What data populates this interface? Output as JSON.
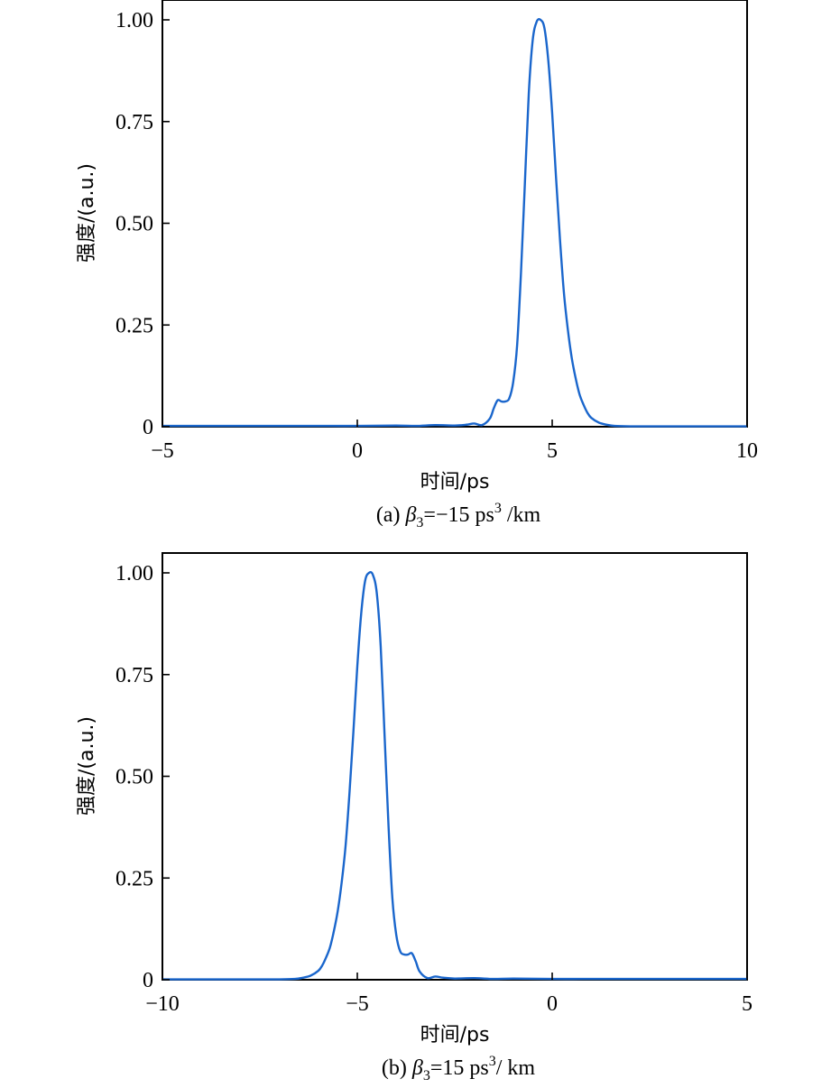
{
  "chart_data": [
    {
      "type": "line",
      "panel": "a",
      "xlabel": "时间/ps",
      "ylabel": "强度/(a.u.)",
      "xlim": [
        -5,
        10
      ],
      "ylim": [
        0,
        1.05
      ],
      "xticks": [
        -5,
        0,
        5,
        10
      ],
      "xtick_labels": [
        "−5",
        "0",
        "5",
        "10"
      ],
      "yticks": [
        0,
        0.25,
        0.5,
        0.75,
        1.0
      ],
      "ytick_labels": [
        "0",
        "0.25",
        "0.50",
        "0.75",
        "1.00"
      ],
      "caption": {
        "prefix": "(a) ",
        "symbol": "β",
        "subscript": "3",
        "value": "=−15 ps",
        "superscript": "3",
        "suffix": " /km"
      },
      "grid": false,
      "series": [
        {
          "color": "#1a66cc",
          "x": [
            -5,
            -4,
            -3,
            -2,
            -1,
            0,
            1,
            1.5,
            2,
            2.5,
            2.8,
            3.0,
            3.2,
            3.4,
            3.5,
            3.6,
            3.7,
            3.8,
            3.9,
            4.0,
            4.1,
            4.2,
            4.3,
            4.4,
            4.5,
            4.6,
            4.7,
            4.8,
            4.9,
            5.0,
            5.1,
            5.2,
            5.3,
            5.4,
            5.5,
            5.6,
            5.7,
            5.8,
            5.9,
            6.0,
            6.2,
            6.4,
            6.6,
            7.0,
            8,
            9,
            10
          ],
          "y": [
            0.002,
            0.002,
            0.002,
            0.002,
            0.002,
            0.002,
            0.003,
            0.002,
            0.004,
            0.003,
            0.005,
            0.008,
            0.004,
            0.02,
            0.045,
            0.065,
            0.062,
            0.062,
            0.07,
            0.11,
            0.2,
            0.38,
            0.6,
            0.82,
            0.95,
            0.995,
            1.0,
            0.98,
            0.9,
            0.77,
            0.61,
            0.46,
            0.33,
            0.24,
            0.17,
            0.12,
            0.08,
            0.055,
            0.035,
            0.022,
            0.01,
            0.005,
            0.002,
            0.001,
            0.001,
            0.001,
            0.001
          ]
        }
      ]
    },
    {
      "type": "line",
      "panel": "b",
      "xlabel": "时间/ps",
      "ylabel": "强度/(a.u.)",
      "xlim": [
        -10,
        5
      ],
      "ylim": [
        0,
        1.05
      ],
      "xticks": [
        -10,
        -5,
        0,
        5
      ],
      "xtick_labels": [
        "−10",
        "−5",
        "0",
        "5"
      ],
      "yticks": [
        0,
        0.25,
        0.5,
        0.75,
        1.0
      ],
      "ytick_labels": [
        "0",
        "0.25",
        "0.50",
        "0.75",
        "1.00"
      ],
      "caption": {
        "prefix": "(b) ",
        "symbol": "β",
        "subscript": "3",
        "value": "=15 ps",
        "superscript": "3",
        "suffix": "/ km"
      },
      "grid": false,
      "series": [
        {
          "color": "#1a66cc",
          "x": [
            -10,
            -9,
            -8,
            -7.0,
            -6.6,
            -6.4,
            -6.2,
            -6.0,
            -5.9,
            -5.8,
            -5.7,
            -5.6,
            -5.5,
            -5.4,
            -5.3,
            -5.2,
            -5.1,
            -5.0,
            -4.9,
            -4.8,
            -4.7,
            -4.6,
            -4.5,
            -4.4,
            -4.3,
            -4.2,
            -4.1,
            -4.0,
            -3.9,
            -3.8,
            -3.7,
            -3.6,
            -3.5,
            -3.4,
            -3.2,
            -3.0,
            -2.8,
            -2.5,
            -2.0,
            -1.5,
            -1.0,
            0,
            1,
            2,
            3,
            4,
            5
          ],
          "y": [
            0.001,
            0.001,
            0.001,
            0.001,
            0.002,
            0.005,
            0.01,
            0.022,
            0.035,
            0.055,
            0.08,
            0.12,
            0.17,
            0.24,
            0.33,
            0.46,
            0.61,
            0.77,
            0.9,
            0.98,
            1.0,
            0.995,
            0.95,
            0.82,
            0.6,
            0.38,
            0.2,
            0.11,
            0.07,
            0.062,
            0.062,
            0.065,
            0.045,
            0.02,
            0.004,
            0.008,
            0.005,
            0.003,
            0.004,
            0.002,
            0.003,
            0.002,
            0.002,
            0.002,
            0.002,
            0.002,
            0.002
          ]
        }
      ]
    }
  ]
}
